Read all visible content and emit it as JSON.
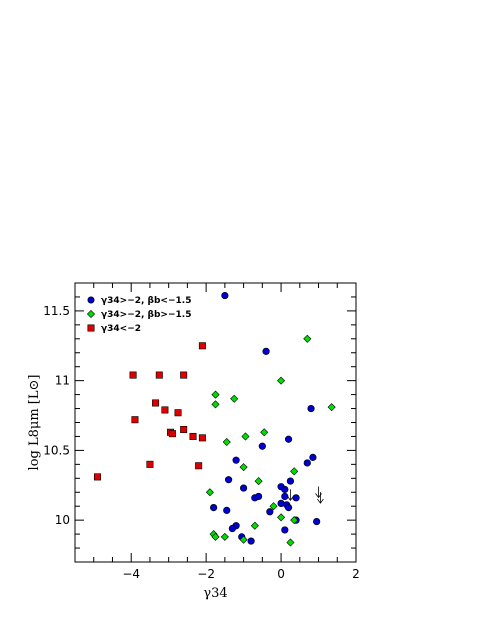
{
  "chart_data": {
    "type": "scatter",
    "title": "",
    "xlabel": "γ34",
    "ylabel": "log L8μm [L⊙]",
    "xlim": [
      -5.5,
      2.0
    ],
    "ylim": [
      9.7,
      11.7
    ],
    "x_ticks": [
      -4,
      -2,
      0,
      2
    ],
    "x_tick_labels": [
      "−4",
      "−2",
      "0",
      "2"
    ],
    "y_ticks": [
      10,
      10.5,
      11,
      11.5
    ],
    "y_tick_labels": [
      "10",
      "10.5",
      "11",
      "11.5"
    ],
    "grid": false,
    "legend_position": "top-left",
    "series": [
      {
        "name": "γ34>−2, βb<−1.5",
        "marker": "circle",
        "color": "#0000cc",
        "points": [
          {
            "x": -1.5,
            "y": 11.61
          },
          {
            "x": -0.4,
            "y": 11.21
          },
          {
            "x": 0.8,
            "y": 10.8
          },
          {
            "x": 0.2,
            "y": 10.58
          },
          {
            "x": -0.5,
            "y": 10.53
          },
          {
            "x": 0.85,
            "y": 10.45
          },
          {
            "x": -1.2,
            "y": 10.43
          },
          {
            "x": 0.7,
            "y": 10.41
          },
          {
            "x": -1.4,
            "y": 10.29
          },
          {
            "x": 0.25,
            "y": 10.28
          },
          {
            "x": -1.0,
            "y": 10.23
          },
          {
            "x": 0.0,
            "y": 10.24
          },
          {
            "x": 0.1,
            "y": 10.22
          },
          {
            "x": -0.7,
            "y": 10.16
          },
          {
            "x": -0.6,
            "y": 10.17
          },
          {
            "x": 0.1,
            "y": 10.17
          },
          {
            "x": 0.4,
            "y": 10.16
          },
          {
            "x": 0.0,
            "y": 10.12
          },
          {
            "x": 0.15,
            "y": 10.11
          },
          {
            "x": -1.8,
            "y": 10.09
          },
          {
            "x": 0.2,
            "y": 10.09
          },
          {
            "x": -1.45,
            "y": 10.07
          },
          {
            "x": -0.3,
            "y": 10.06
          },
          {
            "x": 0.4,
            "y": 10.0
          },
          {
            "x": 0.95,
            "y": 9.99
          },
          {
            "x": -1.2,
            "y": 9.96
          },
          {
            "x": -1.3,
            "y": 9.94
          },
          {
            "x": 0.1,
            "y": 9.93
          },
          {
            "x": -1.05,
            "y": 9.88
          },
          {
            "x": -0.8,
            "y": 9.85
          }
        ]
      },
      {
        "name": "γ34>−2, βb>−1.5",
        "marker": "diamond",
        "color": "#00dd00",
        "points": [
          {
            "x": 0.7,
            "y": 11.3
          },
          {
            "x": 0.0,
            "y": 11.0
          },
          {
            "x": -1.75,
            "y": 10.9
          },
          {
            "x": -1.25,
            "y": 10.87
          },
          {
            "x": -1.75,
            "y": 10.83
          },
          {
            "x": 1.35,
            "y": 10.81
          },
          {
            "x": -0.45,
            "y": 10.63
          },
          {
            "x": -0.95,
            "y": 10.6
          },
          {
            "x": -1.45,
            "y": 10.56
          },
          {
            "x": -1.0,
            "y": 10.38
          },
          {
            "x": 0.35,
            "y": 10.35
          },
          {
            "x": -0.6,
            "y": 10.28
          },
          {
            "x": -1.9,
            "y": 10.2
          },
          {
            "x": -0.2,
            "y": 10.1
          },
          {
            "x": 0.0,
            "y": 10.02
          },
          {
            "x": 0.35,
            "y": 10.0
          },
          {
            "x": -0.7,
            "y": 9.96
          },
          {
            "x": -1.8,
            "y": 9.9
          },
          {
            "x": -1.75,
            "y": 9.88
          },
          {
            "x": -1.5,
            "y": 9.88
          },
          {
            "x": -1.0,
            "y": 9.86
          },
          {
            "x": 0.25,
            "y": 9.84
          }
        ]
      },
      {
        "name": "γ34<−2",
        "marker": "square",
        "color": "#dd0000",
        "points": [
          {
            "x": -2.1,
            "y": 11.25
          },
          {
            "x": -3.95,
            "y": 11.04
          },
          {
            "x": -3.25,
            "y": 11.04
          },
          {
            "x": -2.6,
            "y": 11.04
          },
          {
            "x": -3.35,
            "y": 10.84
          },
          {
            "x": -3.1,
            "y": 10.79
          },
          {
            "x": -2.75,
            "y": 10.77
          },
          {
            "x": -3.9,
            "y": 10.72
          },
          {
            "x": -2.6,
            "y": 10.65
          },
          {
            "x": -2.95,
            "y": 10.63
          },
          {
            "x": -2.9,
            "y": 10.62
          },
          {
            "x": -2.35,
            "y": 10.6
          },
          {
            "x": -2.1,
            "y": 10.59
          },
          {
            "x": -3.5,
            "y": 10.4
          },
          {
            "x": -2.2,
            "y": 10.39
          },
          {
            "x": -4.9,
            "y": 10.31
          }
        ]
      }
    ],
    "upper_limits": [
      {
        "x": 0.25,
        "y": 10.25
      },
      {
        "x": 1.0,
        "y": 10.27
      },
      {
        "x": 1.05,
        "y": 10.23
      }
    ]
  }
}
